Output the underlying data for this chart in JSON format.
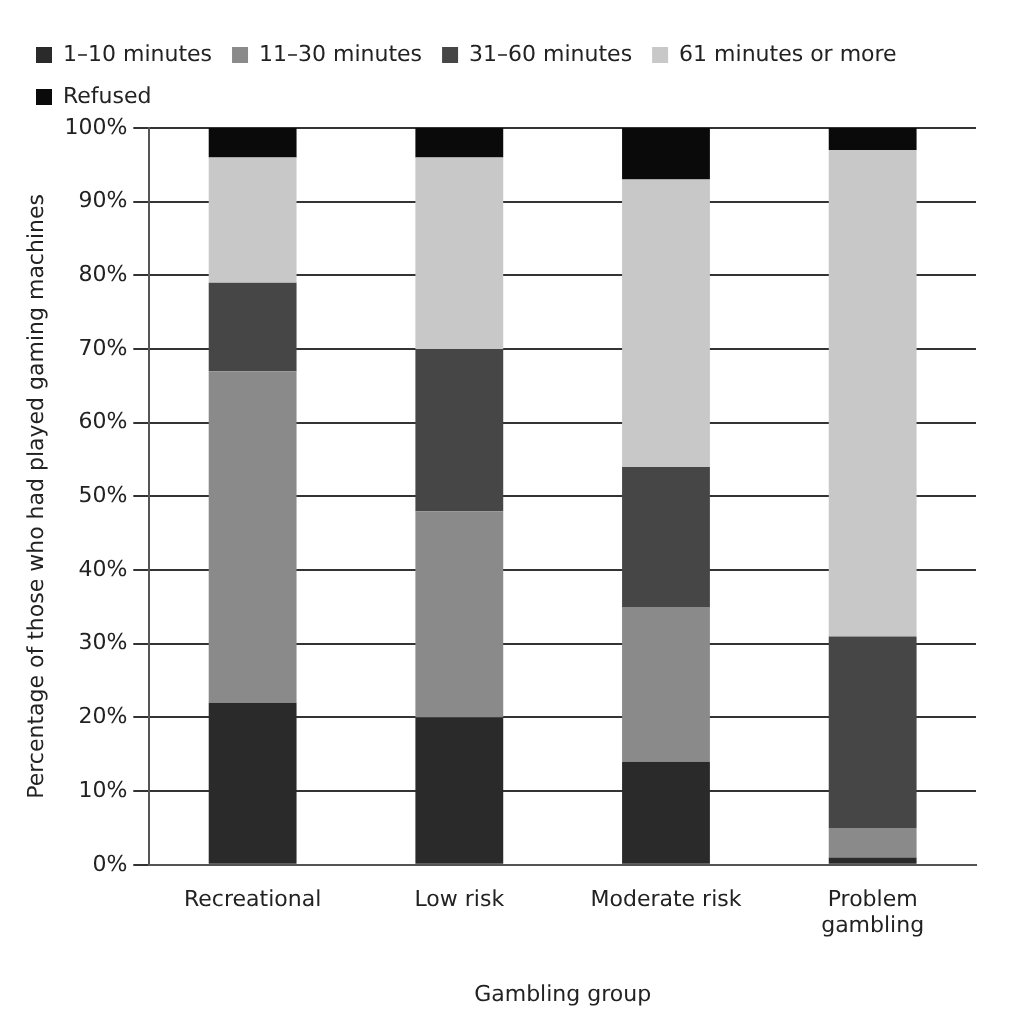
{
  "chart_data": {
    "type": "bar",
    "stacked": true,
    "xlabel": "Gambling group",
    "ylabel": "Percentage of those who had played gaming machines",
    "categories": [
      "Recreational",
      "Low risk",
      "Moderate risk",
      "Problem gambling"
    ],
    "series": [
      {
        "name": "1–10 minutes",
        "color": "#2a2a2a",
        "values": [
          22,
          20,
          14,
          1
        ]
      },
      {
        "name": "11–30 minutes",
        "color": "#8a8a8a",
        "values": [
          45,
          28,
          21,
          4
        ]
      },
      {
        "name": "31–60 minutes",
        "color": "#464646",
        "values": [
          12,
          22,
          19,
          26
        ]
      },
      {
        "name": "61 minutes or more",
        "color": "#c8c8c8",
        "values": [
          17,
          26,
          39,
          66
        ]
      },
      {
        "name": "Refused",
        "color": "#0a0a0a",
        "values": [
          4,
          4,
          7,
          3
        ]
      }
    ],
    "ylim": [
      0,
      100
    ],
    "yticks": [
      {
        "value": 0,
        "label": "0%"
      },
      {
        "value": 10,
        "label": "10%"
      },
      {
        "value": 20,
        "label": "20%"
      },
      {
        "value": 30,
        "label": "30%"
      },
      {
        "value": 40,
        "label": "40%"
      },
      {
        "value": 50,
        "label": "50%"
      },
      {
        "value": 60,
        "label": "60%"
      },
      {
        "value": 70,
        "label": "70%"
      },
      {
        "value": 80,
        "label": "80%"
      },
      {
        "value": 90,
        "label": "90%"
      },
      {
        "value": 100,
        "label": "100%"
      }
    ],
    "grid": "y",
    "legend": "top"
  }
}
